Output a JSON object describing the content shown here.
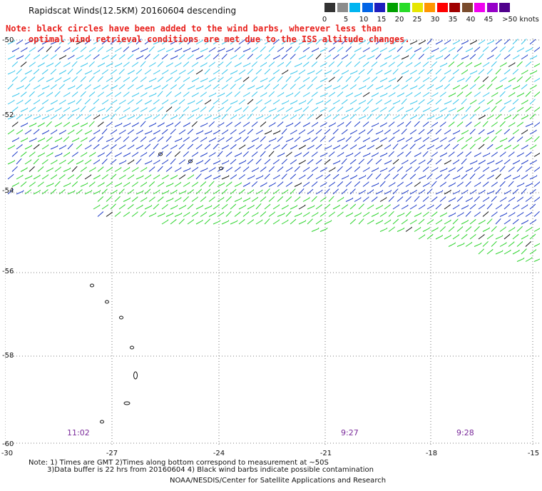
{
  "header": {
    "title": "Rapidscat Winds(12.5KM) 20160604 descending"
  },
  "legend": {
    "labels": [
      "0",
      "5",
      "10",
      "15",
      "20",
      "25",
      "30",
      "35",
      "40",
      "45",
      ">50 knots"
    ],
    "colors": [
      "#333333",
      "#8c8c8c",
      "#00b4f0",
      "#0064e6",
      "#1e1ebe",
      "#00a000",
      "#28dc28",
      "#e6e600",
      "#ff9600",
      "#ff0000",
      "#a00000",
      "#7a4b2d",
      "#f000f0",
      "#9600c8",
      "#50008c"
    ]
  },
  "note": {
    "line1": "Note: black circles have been added to the wind barbs, wherever less than",
    "line2": "optimal wind retrieval conditions are met due to the ISS altitude changes."
  },
  "axes": {
    "lat_labels": [
      "-50",
      "-52",
      "-54",
      "-56",
      "-58",
      "-60"
    ],
    "lon_labels": [
      "-30",
      "-27",
      "-24",
      "-21",
      "-18",
      "-15"
    ]
  },
  "pass_times": [
    "11:02",
    "9:27",
    "9:28"
  ],
  "footer": {
    "line1": "Note: 1) Times are GMT 2)Times along bottom correspond to measurement at ~50S",
    "line2": "3)Data buffer is 22 hrs from 20160604 4) Black wind barbs indicate possible contamination",
    "line3": "NOAA/NESDIS/Center for Satellite Applications and Research"
  },
  "map": {
    "barb_colors": {
      "light": "#39c6ec",
      "medium": "#1e3cc8",
      "strong": "#2ed32e",
      "flagged": "#111111"
    }
  }
}
